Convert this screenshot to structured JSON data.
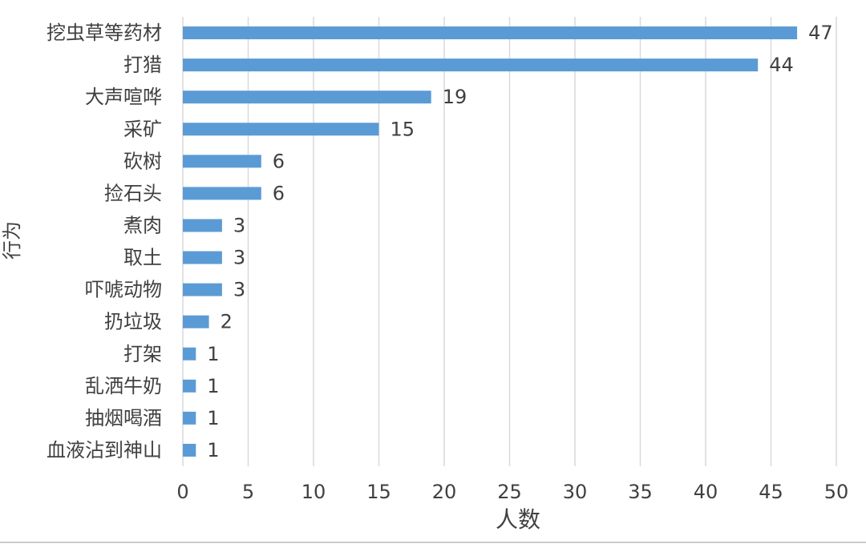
{
  "chart_data": {
    "type": "barh",
    "y_label": "行为",
    "x_label": "人数",
    "categories": [
      "挖虫草等药材",
      "打猎",
      "大声喧哗",
      "采矿",
      "砍树",
      "捡石头",
      "煮肉",
      "取土",
      "吓唬动物",
      "扔垃圾",
      "打架",
      "乱洒牛奶",
      "抽烟喝酒",
      "血液沾到神山"
    ],
    "values": [
      47,
      44,
      19,
      15,
      6,
      6,
      3,
      3,
      3,
      2,
      1,
      1,
      1,
      1
    ],
    "color": "#5b9bd5",
    "xlim": [
      0,
      50
    ],
    "xticks": [
      0,
      5,
      10,
      15,
      20,
      25,
      30,
      35,
      40,
      45,
      50
    ],
    "grid": true
  }
}
